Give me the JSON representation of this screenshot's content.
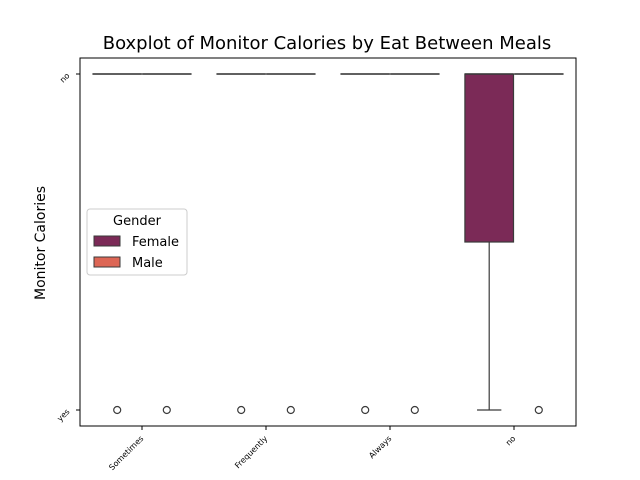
{
  "chart_data": {
    "type": "boxplot",
    "title": "Boxplot of Monitor Calories by Eat Between Meals",
    "xlabel": "",
    "ylabel": "Monitor Calories",
    "categories": [
      "Sometimes",
      "Frequently",
      "Always",
      "no"
    ],
    "y_categories": [
      "no",
      "yes"
    ],
    "legend": {
      "title": "Gender",
      "placement": "center-left",
      "entries": [
        {
          "name": "Female",
          "color": "#7b2a57"
        },
        {
          "name": "Male",
          "color": "#dd6655"
        }
      ]
    },
    "series": [
      {
        "name": "Female",
        "color": "#7b2a57",
        "boxes": [
          {
            "category": "Sometimes",
            "q1": 0,
            "median": 0,
            "q3": 0,
            "whisker_low": 0,
            "whisker_high": 0,
            "outliers": [
              1
            ]
          },
          {
            "category": "Frequently",
            "q1": 0,
            "median": 0,
            "q3": 0,
            "whisker_low": 0,
            "whisker_high": 0,
            "outliers": [
              1
            ]
          },
          {
            "category": "Always",
            "q1": 0,
            "median": 0,
            "q3": 0,
            "whisker_low": 0,
            "whisker_high": 0,
            "outliers": [
              1
            ]
          },
          {
            "category": "no",
            "q1": 0,
            "median": 0,
            "q3": 0.5,
            "whisker_low": 0,
            "whisker_high": 1,
            "outliers": []
          }
        ]
      },
      {
        "name": "Male",
        "color": "#dd6655",
        "boxes": [
          {
            "category": "Sometimes",
            "q1": 0,
            "median": 0,
            "q3": 0,
            "whisker_low": 0,
            "whisker_high": 0,
            "outliers": [
              1
            ]
          },
          {
            "category": "Frequently",
            "q1": 0,
            "median": 0,
            "q3": 0,
            "whisker_low": 0,
            "whisker_high": 0,
            "outliers": [
              1
            ]
          },
          {
            "category": "Always",
            "q1": 0,
            "median": 0,
            "q3": 0,
            "whisker_low": 0,
            "whisker_high": 0,
            "outliers": [
              1
            ]
          },
          {
            "category": "no",
            "q1": 0,
            "median": 0,
            "q3": 0,
            "whisker_low": 0,
            "whisker_high": 0,
            "outliers": [
              1
            ]
          }
        ]
      }
    ],
    "ylim": [
      0,
      1
    ],
    "grid": false
  }
}
